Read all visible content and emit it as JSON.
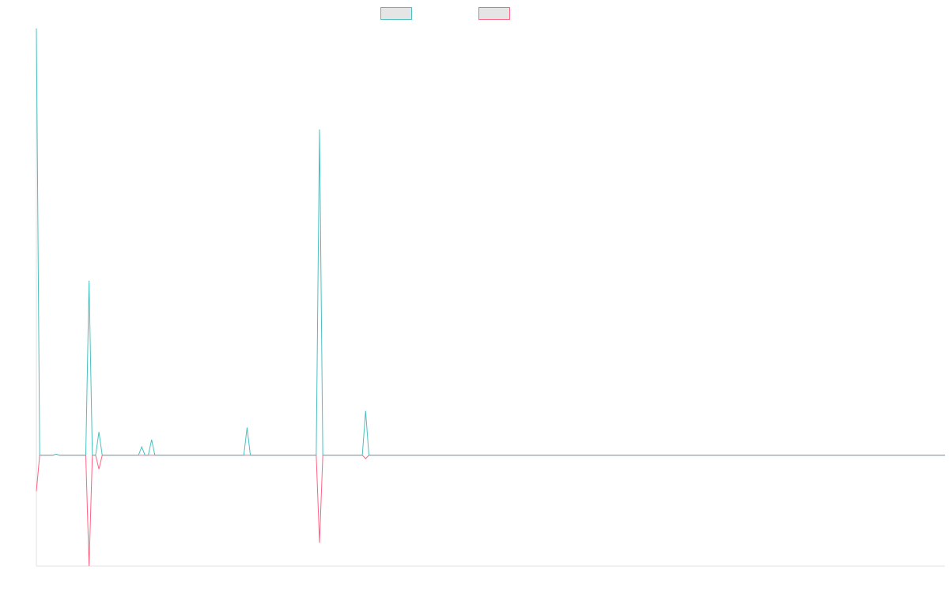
{
  "colors": {
    "series_a": "#4bc0c0",
    "series_b": "#ff6384",
    "swatch_fill": "#e5e5e5",
    "axis": "#e0e0e0"
  },
  "chart_data": {
    "type": "line",
    "title": "",
    "xlabel": "",
    "ylabel": "",
    "legend_position": "top-center",
    "grid": false,
    "ylim": [
      -20,
      77
    ],
    "series": [
      {
        "values": [
          77,
          0,
          0,
          0,
          0,
          0,
          0.2,
          0,
          0,
          0,
          0,
          0,
          0,
          0,
          0,
          0,
          31.5,
          0,
          0,
          4.2,
          0,
          0,
          0,
          0,
          0,
          0,
          0,
          0,
          0,
          0,
          0,
          0,
          1.5,
          0,
          0,
          2.8,
          0,
          0,
          0,
          0,
          0,
          0,
          0,
          0,
          0,
          0,
          0,
          0,
          0,
          0,
          0,
          0,
          0,
          0,
          0,
          0,
          0,
          0,
          0,
          0,
          0,
          0,
          0,
          0,
          5,
          0,
          0,
          0,
          0,
          0,
          0,
          0,
          0,
          0,
          0,
          0,
          0,
          0,
          0,
          0,
          0,
          0,
          0,
          0,
          0,
          0,
          58.8,
          0,
          0,
          0,
          0,
          0,
          0,
          0,
          0,
          0,
          0,
          0,
          0,
          0,
          8,
          0,
          0,
          0,
          0,
          0,
          0,
          0,
          0,
          0,
          0,
          0,
          0,
          0,
          0,
          0,
          0,
          0,
          0,
          0,
          0,
          0,
          0,
          0,
          0,
          0,
          0,
          0,
          0,
          0,
          0,
          0,
          0,
          0,
          0,
          0,
          0,
          0,
          0,
          0,
          0,
          0,
          0,
          0,
          0,
          0,
          0,
          0,
          0,
          0,
          0,
          0,
          0,
          0,
          0,
          0,
          0,
          0,
          0,
          0,
          0,
          0,
          0,
          0,
          0,
          0,
          0,
          0,
          0,
          0,
          0,
          0,
          0,
          0,
          0,
          0,
          0,
          0,
          0,
          0,
          0,
          0,
          0,
          0,
          0,
          0,
          0,
          0,
          0,
          0,
          0,
          0,
          0,
          0,
          0,
          0,
          0,
          0,
          0,
          0,
          0,
          0,
          0,
          0,
          0,
          0,
          0,
          0,
          0,
          0,
          0,
          0,
          0,
          0,
          0,
          0,
          0,
          0,
          0,
          0,
          0,
          0,
          0,
          0,
          0,
          0,
          0,
          0,
          0,
          0,
          0,
          0,
          0,
          0,
          0,
          0,
          0,
          0,
          0,
          0,
          0,
          0,
          0,
          0,
          0,
          0,
          0,
          0,
          0,
          0,
          0,
          0,
          0,
          0,
          0,
          0,
          0,
          0,
          0,
          0,
          0,
          0,
          0,
          0,
          0,
          0,
          0,
          0,
          0,
          0,
          0,
          0,
          0,
          0,
          0,
          0,
          0
        ]
      },
      {
        "values": [
          -6.5,
          0,
          0,
          0,
          0,
          0,
          0.2,
          0,
          0,
          0,
          0,
          0,
          0,
          0,
          0,
          0,
          -20,
          0,
          0,
          -2.5,
          0,
          0,
          0,
          0,
          0,
          0,
          0,
          0,
          0,
          0,
          0,
          0,
          0,
          0,
          0,
          0,
          0,
          0,
          0,
          0,
          0,
          0,
          0,
          0,
          0,
          0,
          0,
          0,
          0,
          0,
          0,
          0,
          0,
          0,
          0,
          0,
          0,
          0,
          0,
          0,
          0,
          0,
          0,
          0,
          0,
          0,
          0,
          0,
          0,
          0,
          0,
          0,
          0,
          0,
          0,
          0,
          0,
          0,
          0,
          0,
          0,
          0,
          0,
          0,
          0,
          0,
          -15.8,
          0,
          0,
          0,
          0,
          0,
          0,
          0,
          0,
          0,
          0,
          0,
          0,
          0,
          -0.6,
          0,
          0,
          0,
          0,
          0,
          0,
          0,
          0,
          0,
          0,
          0,
          0,
          0,
          0,
          0,
          0,
          0,
          0,
          0,
          0,
          0,
          0,
          0,
          0,
          0,
          0,
          0,
          0,
          0,
          0,
          0,
          0,
          0,
          0,
          0,
          0,
          0,
          0,
          0,
          0,
          0,
          0,
          0,
          0,
          0,
          0,
          0,
          0,
          0,
          0,
          0,
          0,
          0,
          0,
          0,
          0,
          0,
          0,
          0,
          0,
          0,
          0,
          0,
          0,
          0,
          0,
          0,
          0,
          0,
          0,
          0,
          0,
          0,
          0,
          0,
          0,
          0,
          0,
          0,
          0,
          0,
          0,
          0,
          0,
          0,
          0,
          0,
          0,
          0,
          0,
          0,
          0,
          0,
          0,
          0,
          0,
          0,
          0,
          0,
          0,
          0,
          0,
          0,
          0,
          0,
          0,
          0,
          0,
          0,
          0,
          0,
          0,
          0,
          0,
          0,
          0,
          0,
          0,
          0,
          0,
          0,
          0,
          0,
          0,
          0,
          0,
          0,
          0,
          0,
          0,
          0,
          0,
          0,
          0,
          0,
          0,
          0,
          0,
          0,
          0,
          0,
          0,
          0,
          0,
          0,
          0,
          0,
          0,
          0,
          0,
          0,
          0,
          0,
          0,
          0,
          0,
          0,
          0,
          0,
          0,
          0,
          0,
          0,
          0,
          0,
          0,
          0,
          0,
          0,
          0,
          0,
          0,
          0,
          0,
          0,
          0
        ]
      }
    ]
  }
}
